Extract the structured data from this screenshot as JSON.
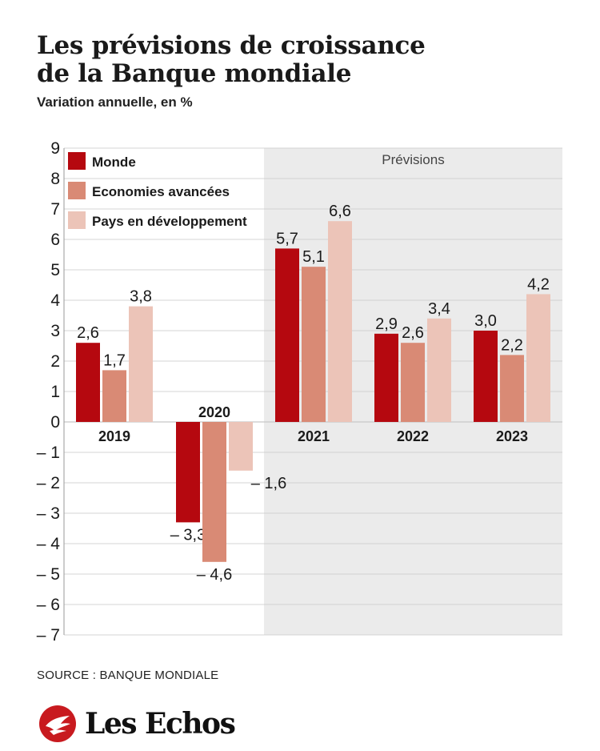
{
  "title_line1": "Les prévisions de croissance",
  "title_line2": "de la Banque mondiale",
  "subtitle": "Variation annuelle, en %",
  "source": "SOURCE : BANQUE MONDIALE",
  "brand": "Les Echos",
  "colors": {
    "monde": "#b5080f",
    "avancees": "#d98a75",
    "developpement": "#ecc4b8",
    "forecast_bg": "#ebebeb",
    "grid": "#c8c8c8",
    "logo": "#c81a1f"
  },
  "chart_data": {
    "type": "bar",
    "categories": [
      "2019",
      "2020",
      "2021",
      "2022",
      "2023"
    ],
    "series": [
      {
        "name": "Monde",
        "values": [
          2.6,
          -3.3,
          5.7,
          2.9,
          3.0
        ],
        "labels": [
          "2,6",
          "– 3,3",
          "5,7",
          "2,9",
          "3,0"
        ]
      },
      {
        "name": "Economies avancées",
        "values": [
          1.7,
          -4.6,
          5.1,
          2.6,
          2.2
        ],
        "labels": [
          "1,7",
          "– 4,6",
          "5,1",
          "2,6",
          "2,2"
        ]
      },
      {
        "name": "Pays en développement",
        "values": [
          3.8,
          -1.6,
          6.6,
          3.4,
          4.2
        ],
        "labels": [
          "3,8",
          "– 1,6",
          "6,6",
          "3,4",
          "4,2"
        ]
      }
    ],
    "ylim": [
      -7,
      9
    ],
    "yticks": [
      9,
      8,
      7,
      6,
      5,
      4,
      3,
      2,
      1,
      0,
      -1,
      -2,
      -3,
      -4,
      -5,
      -6,
      -7
    ],
    "ytick_labels": [
      "9",
      "8",
      "7",
      "6",
      "5",
      "4",
      "3",
      "2",
      "1",
      "0",
      "– 1",
      "– 2",
      "– 3",
      "– 4",
      "– 5",
      "– 6",
      "– 7"
    ],
    "forecast_label": "Prévisions",
    "forecast_start_category": "2021",
    "grid": true,
    "legend_position": "top-left"
  }
}
